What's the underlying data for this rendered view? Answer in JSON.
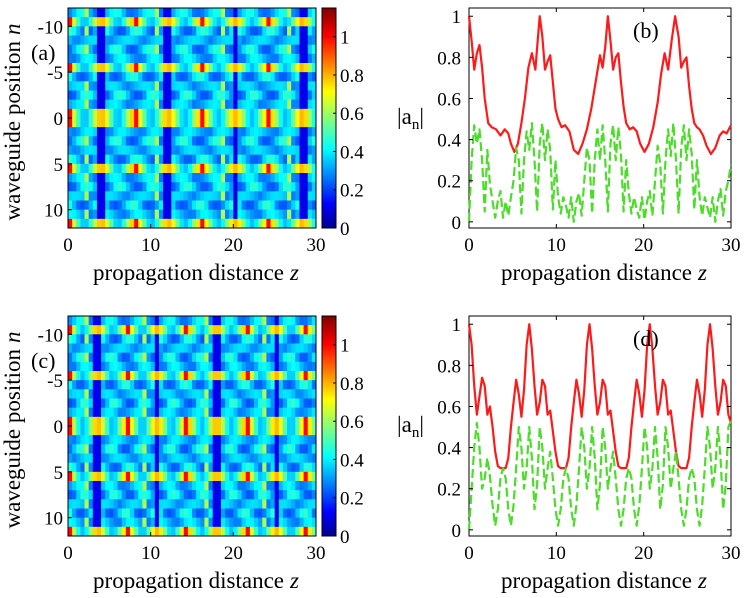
{
  "chart_data": [
    {
      "id": "a",
      "type": "heatmap",
      "panel_label": "(a)",
      "xlabel_main": "propagation distance",
      "xlabel_var": "z",
      "ylabel_main": "waveguide position",
      "ylabel_var": "n",
      "xlim": [
        0,
        30
      ],
      "ylim": [
        -12,
        12
      ],
      "x_ticks": [
        "0",
        "10",
        "20",
        "30"
      ],
      "y_ticks": [
        "-10",
        "-5",
        "0",
        "5",
        "10"
      ],
      "colorbar_ticks": [
        "0",
        "0.2",
        "0.4",
        "0.6",
        "0.8",
        "1"
      ],
      "colorbar_range": [
        0,
        1.15
      ],
      "period_z": 8.1,
      "bright_rows": [
        -11,
        -6,
        -1,
        0,
        5,
        11
      ]
    },
    {
      "id": "b",
      "type": "line",
      "panel_label": "(b)",
      "xlabel_main": "propagation distance",
      "xlabel_var": "z",
      "ylabel": "|a",
      "ylabel_sub": "n",
      "ylabel_end": "|",
      "xlim": [
        0,
        30
      ],
      "ylim": [
        -0.03,
        1.04
      ],
      "x_ticks": [
        "0",
        "10",
        "20",
        "30"
      ],
      "y_ticks": [
        "0",
        "0.2",
        "0.4",
        "0.6",
        "0.8",
        "1"
      ],
      "series": [
        {
          "name": "red-solid",
          "color": "#ff1a1a",
          "style": "solid",
          "x": [
            0,
            0.3,
            0.6,
            0.9,
            1.2,
            1.5,
            1.8,
            2.2,
            2.6,
            3.1,
            3.6,
            4.1,
            4.5,
            4.8,
            5.2,
            5.6,
            6.0,
            6.4,
            6.8,
            7.2,
            7.6,
            7.9,
            8.1,
            8.4,
            8.7,
            9.0,
            9.3,
            9.6,
            9.9,
            10.2,
            10.6,
            11.0,
            11.5,
            12.0,
            12.5,
            13.0,
            13.5,
            14.0,
            14.5,
            15.0,
            15.3,
            15.6,
            15.9,
            16.2,
            16.5,
            16.8,
            17.1,
            17.4,
            17.7,
            18.0,
            18.4,
            18.8,
            19.2,
            19.6,
            20.1,
            20.6,
            21.1,
            21.6,
            22.0,
            22.4,
            22.8,
            23.2,
            23.6,
            24.0,
            24.3,
            24.6,
            24.9,
            25.2,
            25.5,
            25.8,
            26.1,
            26.4,
            26.8,
            27.2,
            27.7,
            28.2,
            28.7,
            29.1,
            29.5,
            30
          ],
          "y": [
            1.0,
            0.88,
            0.74,
            0.82,
            0.86,
            0.75,
            0.6,
            0.48,
            0.46,
            0.45,
            0.42,
            0.45,
            0.43,
            0.38,
            0.34,
            0.38,
            0.48,
            0.6,
            0.75,
            0.82,
            0.74,
            0.9,
            1.0,
            0.9,
            0.74,
            0.78,
            0.81,
            0.68,
            0.55,
            0.5,
            0.46,
            0.47,
            0.44,
            0.35,
            0.33,
            0.38,
            0.45,
            0.55,
            0.68,
            0.81,
            0.75,
            0.85,
            1.0,
            0.88,
            0.74,
            0.8,
            0.82,
            0.68,
            0.56,
            0.48,
            0.45,
            0.46,
            0.44,
            0.38,
            0.34,
            0.38,
            0.46,
            0.58,
            0.72,
            0.82,
            0.74,
            0.88,
            1.0,
            0.9,
            0.75,
            0.78,
            0.8,
            0.66,
            0.55,
            0.48,
            0.46,
            0.45,
            0.42,
            0.37,
            0.33,
            0.36,
            0.42,
            0.44,
            0.43,
            0.47
          ]
        },
        {
          "name": "green-dashed",
          "color": "#4cdc2a",
          "style": "dashed",
          "x": [
            0,
            0.3,
            0.6,
            0.9,
            1.2,
            1.5,
            1.8,
            2.1,
            2.4,
            2.7,
            3.0,
            3.3,
            3.6,
            3.9,
            4.2,
            4.5,
            4.8,
            5.1,
            5.4,
            5.7,
            6.0,
            6.3,
            6.6,
            6.9,
            7.2,
            7.5,
            7.8,
            8.1,
            8.4,
            8.7,
            9.0,
            9.3,
            9.6,
            9.9,
            10.2,
            10.5,
            10.8,
            11.1,
            11.4,
            11.7,
            12.0,
            12.3,
            12.6,
            12.9,
            13.2,
            13.5,
            13.8,
            14.1,
            14.4,
            14.7,
            15.0,
            15.3,
            15.6,
            15.9,
            16.2,
            16.5,
            16.8,
            17.1,
            17.4,
            17.7,
            18.0,
            18.3,
            18.6,
            18.9,
            19.2,
            19.5,
            19.8,
            20.1,
            20.4,
            20.7,
            21.0,
            21.3,
            21.6,
            21.9,
            22.2,
            22.5,
            22.8,
            23.1,
            23.4,
            23.7,
            24.0,
            24.3,
            24.6,
            24.9,
            25.2,
            25.5,
            25.8,
            26.1,
            26.4,
            26.7,
            27.0,
            27.3,
            27.6,
            27.9,
            28.2,
            28.5,
            28.8,
            29.1,
            29.4,
            29.7,
            30
          ],
          "y": [
            0.0,
            0.3,
            0.47,
            0.38,
            0.45,
            0.3,
            0.05,
            0.35,
            0.18,
            0.1,
            0.02,
            0.1,
            0.15,
            0.02,
            0.1,
            0.03,
            0.12,
            0.2,
            0.36,
            0.3,
            0.04,
            0.3,
            0.44,
            0.35,
            0.48,
            0.3,
            0.05,
            0.38,
            0.48,
            0.3,
            0.45,
            0.35,
            0.06,
            0.3,
            0.12,
            0.04,
            0.12,
            0.08,
            0.02,
            0.12,
            0.0,
            0.1,
            0.14,
            0.03,
            0.2,
            0.36,
            0.3,
            0.04,
            0.3,
            0.45,
            0.3,
            0.47,
            0.3,
            0.05,
            0.38,
            0.47,
            0.3,
            0.46,
            0.33,
            0.05,
            0.3,
            0.14,
            0.04,
            0.12,
            0.06,
            0.02,
            0.12,
            0.01,
            0.1,
            0.15,
            0.03,
            0.2,
            0.37,
            0.28,
            0.04,
            0.3,
            0.45,
            0.32,
            0.48,
            0.3,
            0.04,
            0.36,
            0.47,
            0.3,
            0.45,
            0.33,
            0.06,
            0.3,
            0.12,
            0.03,
            0.12,
            0.07,
            0.02,
            0.12,
            0.0,
            0.1,
            0.16,
            0.03,
            0.15,
            0.2,
            0.28
          ]
        }
      ]
    },
    {
      "id": "c",
      "type": "heatmap",
      "panel_label": "(c)",
      "xlabel_main": "propagation distance",
      "xlabel_var": "z",
      "ylabel_main": "waveguide position",
      "ylabel_var": "n",
      "xlim": [
        0,
        30
      ],
      "ylim": [
        -12,
        12
      ],
      "x_ticks": [
        "0",
        "10",
        "20",
        "30"
      ],
      "y_ticks": [
        "-10",
        "-5",
        "0",
        "5",
        "10"
      ],
      "colorbar_ticks": [
        "0",
        "0.2",
        "0.4",
        "0.6",
        "0.8",
        "1"
      ],
      "colorbar_range": [
        0,
        1.15
      ],
      "period_z": 7.2,
      "bright_rows": [
        -11,
        -6,
        -1,
        0,
        5,
        11
      ]
    },
    {
      "id": "d",
      "type": "line",
      "panel_label": "(d)",
      "xlabel_main": "propagation distance",
      "xlabel_var": "z",
      "ylabel": "|a",
      "ylabel_sub": "n",
      "ylabel_end": "|",
      "xlim": [
        0,
        30
      ],
      "ylim": [
        -0.03,
        1.04
      ],
      "x_ticks": [
        "0",
        "10",
        "20",
        "30"
      ],
      "y_ticks": [
        "0",
        "0.2",
        "0.4",
        "0.6",
        "0.8",
        "1"
      ],
      "series": [
        {
          "name": "red-solid",
          "color": "#ff1a1a",
          "style": "solid",
          "x": [
            0,
            0.3,
            0.6,
            0.9,
            1.2,
            1.5,
            1.8,
            2.1,
            2.4,
            2.7,
            3.0,
            3.3,
            3.6,
            3.9,
            4.2,
            4.5,
            4.8,
            5.1,
            5.4,
            5.7,
            6.0,
            6.3,
            6.6,
            6.9,
            7.2,
            7.5,
            7.8,
            8.1,
            8.4,
            8.7,
            9.0,
            9.3,
            9.6,
            9.9,
            10.2,
            10.5,
            10.8,
            11.1,
            11.4,
            11.7,
            12.0,
            12.3,
            12.6,
            12.9,
            13.2,
            13.5,
            13.8,
            14.1,
            14.4,
            14.7,
            15.0,
            15.3,
            15.6,
            15.9,
            16.2,
            16.5,
            16.8,
            17.1,
            17.4,
            17.7,
            18.0,
            18.3,
            18.6,
            18.9,
            19.2,
            19.5,
            19.8,
            20.1,
            20.4,
            20.7,
            21.0,
            21.3,
            21.6,
            21.9,
            22.2,
            22.5,
            22.8,
            23.1,
            23.4,
            23.7,
            24.0,
            24.3,
            24.6,
            24.9,
            25.2,
            25.5,
            25.8,
            26.1,
            26.4,
            26.7,
            27.0,
            27.3,
            27.6,
            27.9,
            28.2,
            28.5,
            28.8,
            29.1,
            29.4,
            29.7,
            30
          ],
          "y": [
            1.0,
            0.9,
            0.7,
            0.56,
            0.65,
            0.74,
            0.7,
            0.56,
            0.6,
            0.5,
            0.38,
            0.31,
            0.3,
            0.3,
            0.3,
            0.35,
            0.5,
            0.62,
            0.73,
            0.66,
            0.55,
            0.68,
            0.9,
            1.0,
            0.88,
            0.7,
            0.56,
            0.62,
            0.73,
            0.7,
            0.56,
            0.58,
            0.48,
            0.38,
            0.31,
            0.3,
            0.3,
            0.3,
            0.35,
            0.5,
            0.62,
            0.73,
            0.66,
            0.55,
            0.68,
            0.9,
            1.0,
            0.88,
            0.7,
            0.56,
            0.62,
            0.73,
            0.7,
            0.56,
            0.58,
            0.48,
            0.38,
            0.31,
            0.3,
            0.3,
            0.3,
            0.35,
            0.5,
            0.62,
            0.73,
            0.66,
            0.55,
            0.68,
            0.9,
            1.0,
            0.88,
            0.7,
            0.56,
            0.62,
            0.73,
            0.7,
            0.56,
            0.58,
            0.48,
            0.38,
            0.31,
            0.3,
            0.3,
            0.3,
            0.35,
            0.5,
            0.62,
            0.73,
            0.66,
            0.55,
            0.68,
            0.9,
            1.0,
            0.88,
            0.7,
            0.56,
            0.62,
            0.73,
            0.7,
            0.56,
            0.52
          ]
        },
        {
          "name": "green-dashed",
          "color": "#4cdc2a",
          "style": "dashed",
          "x": [
            0,
            0.3,
            0.6,
            0.9,
            1.2,
            1.5,
            1.8,
            2.1,
            2.4,
            2.7,
            3.0,
            3.3,
            3.6,
            3.9,
            4.2,
            4.5,
            4.8,
            5.1,
            5.4,
            5.7,
            6.0,
            6.3,
            6.6,
            6.9,
            7.2,
            7.5,
            7.8,
            8.1,
            8.4,
            8.7,
            9.0,
            9.3,
            9.6,
            9.9,
            10.2,
            10.5,
            10.8,
            11.1,
            11.4,
            11.7,
            12.0,
            12.3,
            12.6,
            12.9,
            13.2,
            13.5,
            13.8,
            14.1,
            14.4,
            14.7,
            15.0,
            15.3,
            15.6,
            15.9,
            16.2,
            16.5,
            16.8,
            17.1,
            17.4,
            17.7,
            18.0,
            18.3,
            18.6,
            18.9,
            19.2,
            19.5,
            19.8,
            20.1,
            20.4,
            20.7,
            21.0,
            21.3,
            21.6,
            21.9,
            22.2,
            22.5,
            22.8,
            23.1,
            23.4,
            23.7,
            24.0,
            24.3,
            24.6,
            24.9,
            25.2,
            25.5,
            25.8,
            26.1,
            26.4,
            26.7,
            27.0,
            27.3,
            27.6,
            27.9,
            28.2,
            28.5,
            28.8,
            29.1,
            29.4,
            29.7,
            30
          ],
          "y": [
            0.0,
            0.2,
            0.4,
            0.52,
            0.4,
            0.2,
            0.25,
            0.35,
            0.26,
            0.12,
            0.02,
            0.1,
            0.25,
            0.3,
            0.25,
            0.1,
            0.02,
            0.12,
            0.3,
            0.5,
            0.4,
            0.2,
            0.3,
            0.5,
            0.35,
            0.1,
            0.22,
            0.5,
            0.4,
            0.2,
            0.3,
            0.38,
            0.25,
            0.1,
            0.02,
            0.1,
            0.25,
            0.3,
            0.25,
            0.1,
            0.02,
            0.12,
            0.3,
            0.5,
            0.4,
            0.2,
            0.3,
            0.5,
            0.35,
            0.1,
            0.22,
            0.5,
            0.4,
            0.2,
            0.3,
            0.38,
            0.25,
            0.1,
            0.02,
            0.1,
            0.25,
            0.3,
            0.25,
            0.1,
            0.02,
            0.12,
            0.3,
            0.5,
            0.4,
            0.2,
            0.3,
            0.5,
            0.35,
            0.1,
            0.22,
            0.5,
            0.4,
            0.2,
            0.3,
            0.38,
            0.25,
            0.1,
            0.02,
            0.1,
            0.25,
            0.3,
            0.25,
            0.1,
            0.02,
            0.12,
            0.3,
            0.5,
            0.4,
            0.2,
            0.3,
            0.5,
            0.35,
            0.1,
            0.22,
            0.5,
            0.53
          ]
        }
      ]
    }
  ]
}
